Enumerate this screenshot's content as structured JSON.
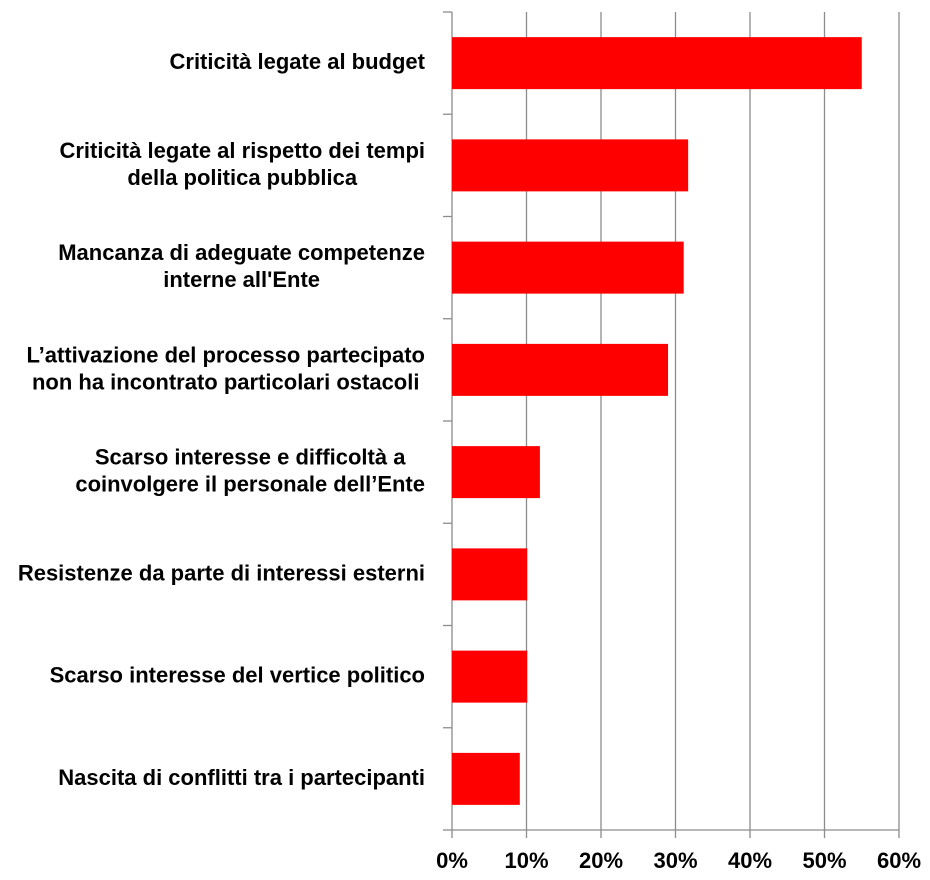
{
  "chart_data": {
    "type": "barh",
    "categories": [
      "Criticità legate al budget",
      "Criticità legate al rispetto dei tempi della politica pubblica",
      "Mancanza di adeguate competenze interne all'Ente",
      "L’attivazione del processo partecipato non ha incontrato particolari ostacoli",
      "Scarso interesse e difficoltà a coinvolgere il personale dell’Ente",
      "Resistenze da parte di interessi esterni",
      "Scarso interesse del vertice politico",
      "Nascita di conflitti tra i partecipanti"
    ],
    "values": [
      55,
      31.7,
      31.1,
      29,
      11.8,
      10.1,
      10.1,
      9.1
    ],
    "color": "#ff0000",
    "xlim": [
      0,
      60
    ],
    "xticks": [
      {
        "value": 0,
        "label": "0%"
      },
      {
        "value": 10,
        "label": "10%"
      },
      {
        "value": 20,
        "label": "20%"
      },
      {
        "value": 30,
        "label": "30%"
      },
      {
        "value": 40,
        "label": "40%"
      },
      {
        "value": 50,
        "label": "50%"
      },
      {
        "value": 60,
        "label": "60%"
      }
    ],
    "grid": true
  }
}
